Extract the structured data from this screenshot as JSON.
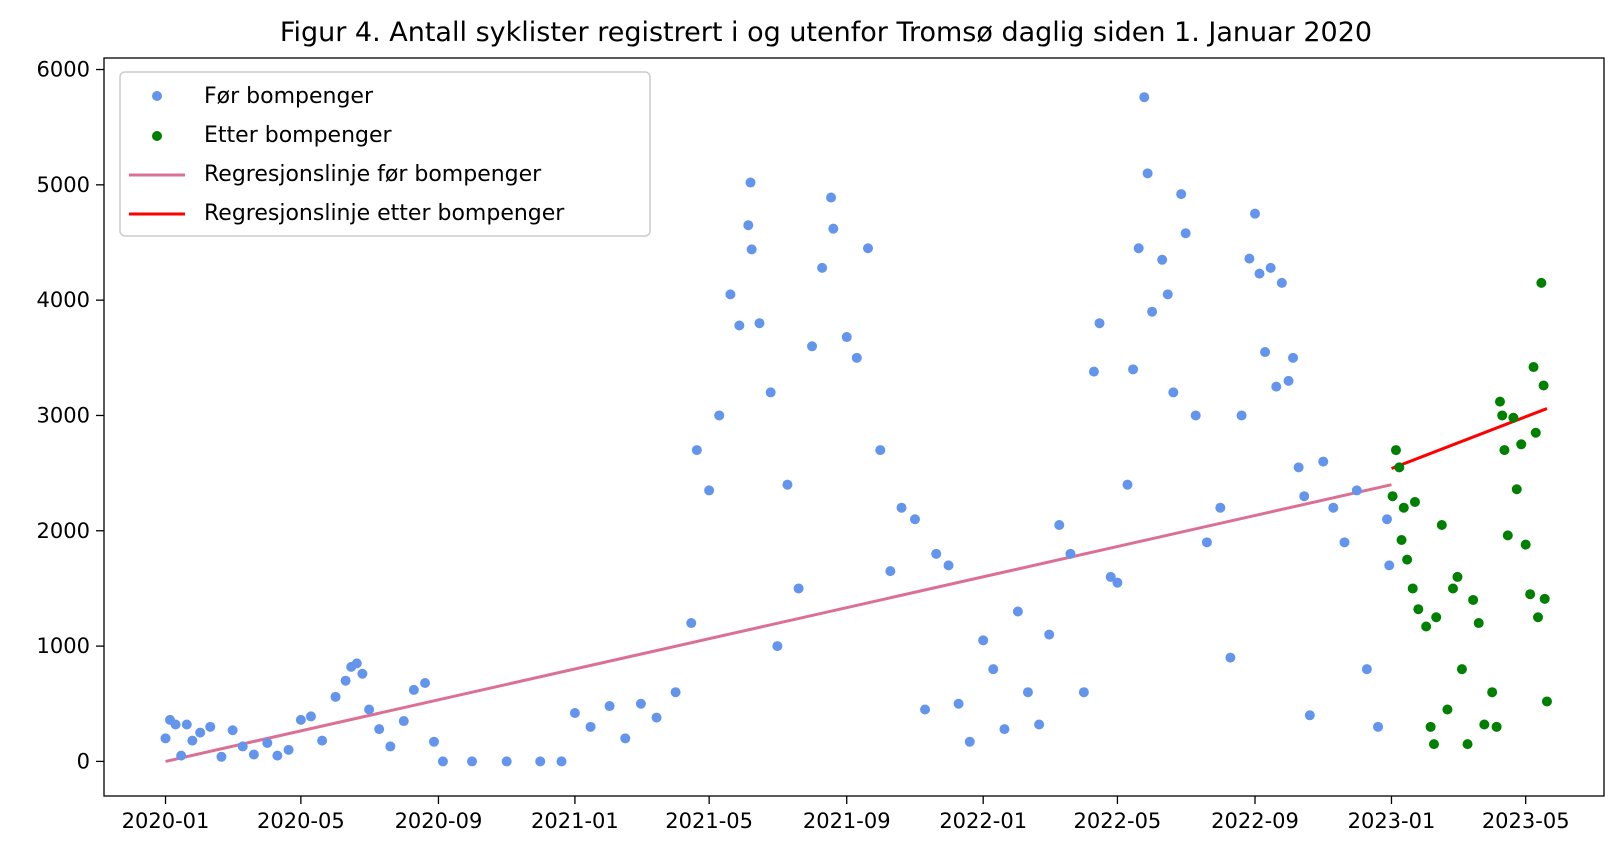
{
  "chart_data": {
    "type": "scatter",
    "title": "Figur 4. Antall syklister registrert i og utenfor Tromsø daglig siden 1. Januar 2020",
    "xlabel": "",
    "ylabel": "",
    "x_range": [
      "2019-11-07",
      "2023-07-10"
    ],
    "y_range": [
      -300,
      6100
    ],
    "x_ticks": [
      "2020-01",
      "2020-05",
      "2020-09",
      "2021-01",
      "2021-05",
      "2021-09",
      "2022-01",
      "2022-05",
      "2022-09",
      "2023-01",
      "2023-05"
    ],
    "y_ticks": [
      0,
      1000,
      2000,
      3000,
      4000,
      5000,
      6000
    ],
    "grid": false,
    "legend_position": "top-left",
    "colors": {
      "before": "#6495ED",
      "after": "#008000",
      "reg_before": "#DB7093",
      "reg_after": "#FF0000"
    },
    "series": [
      {
        "name": "Før bompenger",
        "kind": "scatter",
        "points": [
          [
            "2020-01-01",
            200
          ],
          [
            "2020-01-05",
            360
          ],
          [
            "2020-01-10",
            320
          ],
          [
            "2020-01-15",
            50
          ],
          [
            "2020-01-20",
            320
          ],
          [
            "2020-01-25",
            180
          ],
          [
            "2020-02-01",
            250
          ],
          [
            "2020-02-10",
            300
          ],
          [
            "2020-02-20",
            40
          ],
          [
            "2020-03-01",
            270
          ],
          [
            "2020-03-10",
            130
          ],
          [
            "2020-03-20",
            60
          ],
          [
            "2020-04-01",
            160
          ],
          [
            "2020-04-10",
            50
          ],
          [
            "2020-04-20",
            100
          ],
          [
            "2020-05-01",
            360
          ],
          [
            "2020-05-10",
            390
          ],
          [
            "2020-05-20",
            180
          ],
          [
            "2020-06-01",
            560
          ],
          [
            "2020-06-10",
            700
          ],
          [
            "2020-06-15",
            820
          ],
          [
            "2020-06-20",
            850
          ],
          [
            "2020-06-25",
            760
          ],
          [
            "2020-07-01",
            450
          ],
          [
            "2020-07-10",
            280
          ],
          [
            "2020-07-20",
            130
          ],
          [
            "2020-08-01",
            350
          ],
          [
            "2020-08-10",
            620
          ],
          [
            "2020-08-20",
            680
          ],
          [
            "2020-08-28",
            170
          ],
          [
            "2020-09-05",
            0
          ],
          [
            "2020-10-01",
            0
          ],
          [
            "2020-11-01",
            0
          ],
          [
            "2020-12-01",
            0
          ],
          [
            "2020-12-20",
            0
          ],
          [
            "2021-01-01",
            420
          ],
          [
            "2021-01-15",
            300
          ],
          [
            "2021-02-01",
            480
          ],
          [
            "2021-02-15",
            200
          ],
          [
            "2021-03-01",
            500
          ],
          [
            "2021-03-15",
            380
          ],
          [
            "2021-04-01",
            600
          ],
          [
            "2021-04-15",
            1200
          ],
          [
            "2021-04-20",
            2700
          ],
          [
            "2021-05-01",
            2350
          ],
          [
            "2021-05-10",
            3000
          ],
          [
            "2021-05-20",
            4050
          ],
          [
            "2021-05-28",
            3780
          ],
          [
            "2021-06-05",
            4650
          ],
          [
            "2021-06-07",
            5020
          ],
          [
            "2021-06-08",
            4440
          ],
          [
            "2021-06-15",
            3800
          ],
          [
            "2021-06-25",
            3200
          ],
          [
            "2021-07-01",
            1000
          ],
          [
            "2021-07-10",
            2400
          ],
          [
            "2021-07-20",
            1500
          ],
          [
            "2021-08-01",
            3600
          ],
          [
            "2021-08-10",
            4280
          ],
          [
            "2021-08-18",
            4890
          ],
          [
            "2021-08-20",
            4620
          ],
          [
            "2021-09-01",
            3680
          ],
          [
            "2021-09-10",
            3500
          ],
          [
            "2021-09-20",
            4450
          ],
          [
            "2021-10-01",
            2700
          ],
          [
            "2021-10-10",
            1650
          ],
          [
            "2021-10-20",
            2200
          ],
          [
            "2021-11-01",
            2100
          ],
          [
            "2021-11-10",
            450
          ],
          [
            "2021-11-20",
            1800
          ],
          [
            "2021-12-01",
            1700
          ],
          [
            "2021-12-10",
            500
          ],
          [
            "2021-12-20",
            170
          ],
          [
            "2022-01-01",
            1050
          ],
          [
            "2022-01-10",
            800
          ],
          [
            "2022-01-20",
            280
          ],
          [
            "2022-02-01",
            1300
          ],
          [
            "2022-02-10",
            600
          ],
          [
            "2022-02-20",
            320
          ],
          [
            "2022-03-01",
            1100
          ],
          [
            "2022-03-10",
            2050
          ],
          [
            "2022-03-20",
            1800
          ],
          [
            "2022-04-01",
            600
          ],
          [
            "2022-04-10",
            3380
          ],
          [
            "2022-04-15",
            3800
          ],
          [
            "2022-04-25",
            1600
          ],
          [
            "2022-05-01",
            1550
          ],
          [
            "2022-05-10",
            2400
          ],
          [
            "2022-05-15",
            3400
          ],
          [
            "2022-05-20",
            4450
          ],
          [
            "2022-05-25",
            5760
          ],
          [
            "2022-05-28",
            5100
          ],
          [
            "2022-06-01",
            3900
          ],
          [
            "2022-06-10",
            4350
          ],
          [
            "2022-06-15",
            4050
          ],
          [
            "2022-06-20",
            3200
          ],
          [
            "2022-06-27",
            4920
          ],
          [
            "2022-07-01",
            4580
          ],
          [
            "2022-07-10",
            3000
          ],
          [
            "2022-07-20",
            1900
          ],
          [
            "2022-08-01",
            2200
          ],
          [
            "2022-08-10",
            900
          ],
          [
            "2022-08-20",
            3000
          ],
          [
            "2022-08-27",
            4360
          ],
          [
            "2022-09-01",
            4750
          ],
          [
            "2022-09-05",
            4230
          ],
          [
            "2022-09-10",
            3550
          ],
          [
            "2022-09-15",
            4280
          ],
          [
            "2022-09-20",
            3250
          ],
          [
            "2022-09-25",
            4150
          ],
          [
            "2022-10-01",
            3300
          ],
          [
            "2022-10-05",
            3500
          ],
          [
            "2022-10-10",
            2550
          ],
          [
            "2022-10-15",
            2300
          ],
          [
            "2022-10-20",
            400
          ],
          [
            "2022-11-01",
            2600
          ],
          [
            "2022-11-10",
            2200
          ],
          [
            "2022-11-20",
            1900
          ],
          [
            "2022-12-01",
            2350
          ],
          [
            "2022-12-10",
            800
          ],
          [
            "2022-12-20",
            300
          ],
          [
            "2022-12-28",
            2100
          ],
          [
            "2022-12-30",
            1700
          ]
        ]
      },
      {
        "name": "Etter bompenger",
        "kind": "scatter",
        "points": [
          [
            "2023-01-02",
            2300
          ],
          [
            "2023-01-05",
            2700
          ],
          [
            "2023-01-08",
            2550
          ],
          [
            "2023-01-10",
            1920
          ],
          [
            "2023-01-12",
            2200
          ],
          [
            "2023-01-15",
            1750
          ],
          [
            "2023-01-20",
            1500
          ],
          [
            "2023-01-22",
            2250
          ],
          [
            "2023-01-25",
            1320
          ],
          [
            "2023-02-01",
            1170
          ],
          [
            "2023-02-05",
            300
          ],
          [
            "2023-02-08",
            150
          ],
          [
            "2023-02-10",
            1250
          ],
          [
            "2023-02-15",
            2050
          ],
          [
            "2023-02-20",
            450
          ],
          [
            "2023-02-25",
            1500
          ],
          [
            "2023-03-01",
            1600
          ],
          [
            "2023-03-05",
            800
          ],
          [
            "2023-03-10",
            150
          ],
          [
            "2023-03-15",
            1400
          ],
          [
            "2023-03-20",
            1200
          ],
          [
            "2023-03-25",
            320
          ],
          [
            "2023-04-01",
            600
          ],
          [
            "2023-04-05",
            300
          ],
          [
            "2023-04-08",
            3120
          ],
          [
            "2023-04-10",
            3000
          ],
          [
            "2023-04-12",
            2700
          ],
          [
            "2023-04-15",
            1960
          ],
          [
            "2023-04-20",
            2980
          ],
          [
            "2023-04-23",
            2360
          ],
          [
            "2023-04-27",
            2750
          ],
          [
            "2023-05-01",
            1880
          ],
          [
            "2023-05-05",
            1450
          ],
          [
            "2023-05-08",
            3420
          ],
          [
            "2023-05-10",
            2850
          ],
          [
            "2023-05-12",
            1250
          ],
          [
            "2023-05-15",
            4150
          ],
          [
            "2023-05-17",
            3260
          ],
          [
            "2023-05-18",
            1410
          ],
          [
            "2023-05-20",
            520
          ]
        ]
      },
      {
        "name": "Regresjonslinje før bompenger",
        "kind": "line",
        "points": [
          [
            "2020-01-01",
            0
          ],
          [
            "2023-01-01",
            2400
          ]
        ]
      },
      {
        "name": "Regresjonslinje etter bompenger",
        "kind": "line",
        "points": [
          [
            "2023-01-01",
            2540
          ],
          [
            "2023-05-20",
            3060
          ]
        ]
      }
    ]
  }
}
